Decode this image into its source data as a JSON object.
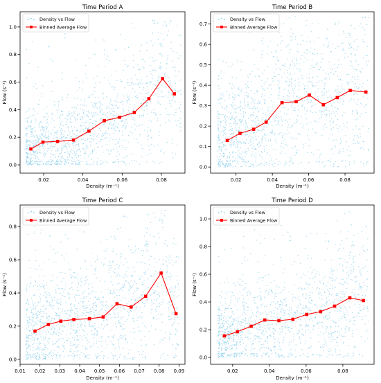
{
  "chart_data": [
    {
      "type": "scatter",
      "title": "Time Period A",
      "xlabel": "Density (m⁻¹)",
      "ylabel": "Flow (s⁻¹)",
      "xlim": [
        0.008,
        0.092
      ],
      "ylim": [
        -0.06,
        1.11
      ],
      "xticks": [
        0.02,
        0.04,
        0.06,
        0.08
      ],
      "xtick_labels": [
        "0.02",
        "0.04",
        "0.06",
        "0.08"
      ],
      "yticks": [
        0.0,
        0.2,
        0.4,
        0.6,
        0.8,
        1.0
      ],
      "ytick_labels": [
        "0.0",
        "0.2",
        "0.4",
        "0.6",
        "0.8",
        "1.0"
      ],
      "legend": {
        "position": "top-left",
        "entries": [
          "Density vs Flow",
          "Binned Average Flow"
        ]
      },
      "series": [
        {
          "name": "Density vs Flow",
          "kind": "scatter",
          "color": "#87ceeb",
          "density_range": [
            0.011,
            0.09
          ],
          "flow_range": [
            0.0,
            1.05
          ]
        },
        {
          "name": "Binned Average Flow",
          "kind": "line",
          "color": "#ff0000",
          "x": [
            0.0135,
            0.0196,
            0.0271,
            0.0352,
            0.0431,
            0.0509,
            0.0587,
            0.0662,
            0.0736,
            0.0806,
            0.0866
          ],
          "y": [
            0.115,
            0.165,
            0.17,
            0.18,
            0.245,
            0.32,
            0.345,
            0.38,
            0.48,
            0.625,
            0.515
          ]
        }
      ]
    },
    {
      "type": "scatter",
      "title": "Time Period B",
      "xlabel": "Density (m⁻¹)",
      "ylabel": "Flow (s⁻¹)",
      "xlim": [
        0.006,
        0.096
      ],
      "ylim": [
        -0.03,
        0.76
      ],
      "xticks": [
        0.02,
        0.04,
        0.06,
        0.08
      ],
      "xtick_labels": [
        "0.02",
        "0.04",
        "0.06",
        "0.08"
      ],
      "yticks": [
        0.0,
        0.1,
        0.2,
        0.3,
        0.4,
        0.5,
        0.6,
        0.7
      ],
      "ytick_labels": [
        "0.0",
        "0.1",
        "0.2",
        "0.3",
        "0.4",
        "0.5",
        "0.6",
        "0.7"
      ],
      "legend": {
        "position": "top-left",
        "entries": [
          "Density vs Flow",
          "Binned Average Flow"
        ]
      },
      "series": [
        {
          "name": "Density vs Flow",
          "kind": "scatter",
          "color": "#87ceeb",
          "density_range": [
            0.01,
            0.093
          ],
          "flow_range": [
            0.0,
            0.74
          ]
        },
        {
          "name": "Binned Average Flow",
          "kind": "line",
          "color": "#ff0000",
          "x": [
            0.0152,
            0.0222,
            0.0297,
            0.0366,
            0.0453,
            0.0531,
            0.0604,
            0.0681,
            0.0757,
            0.0829,
            0.0915
          ],
          "y": [
            0.13,
            0.165,
            0.185,
            0.22,
            0.315,
            0.32,
            0.352,
            0.305,
            0.34,
            0.375,
            0.367
          ]
        }
      ]
    },
    {
      "type": "scatter",
      "title": "Time Period C",
      "xlabel": "Density (m⁻¹)",
      "ylabel": "Flow (s⁻¹)",
      "xlim": [
        0.01,
        0.093
      ],
      "ylim": [
        -0.03,
        0.93
      ],
      "xticks": [
        0.01,
        0.02,
        0.03,
        0.04,
        0.05,
        0.06,
        0.07,
        0.08,
        0.09
      ],
      "xtick_labels": [
        "0.01",
        "0.02",
        "0.03",
        "0.04",
        "0.05",
        "0.06",
        "0.07",
        "0.08",
        "0.09"
      ],
      "yticks": [
        0.0,
        0.2,
        0.4,
        0.6,
        0.8
      ],
      "ytick_labels": [
        "0.0",
        "0.2",
        "0.4",
        "0.6",
        "0.8"
      ],
      "legend": {
        "position": "top-left",
        "entries": [
          "Density vs Flow",
          "Binned Average Flow"
        ]
      },
      "series": [
        {
          "name": "Density vs Flow",
          "kind": "scatter",
          "color": "#87ceeb",
          "density_range": [
            0.013,
            0.09
          ],
          "flow_range": [
            0.0,
            0.9
          ]
        },
        {
          "name": "Binned Average Flow",
          "kind": "line",
          "color": "#ff0000",
          "x": [
            0.0175,
            0.0242,
            0.0305,
            0.0371,
            0.0449,
            0.0518,
            0.0588,
            0.0659,
            0.0732,
            0.081,
            0.0885
          ],
          "y": [
            0.17,
            0.21,
            0.23,
            0.24,
            0.245,
            0.255,
            0.335,
            0.315,
            0.38,
            0.52,
            0.275
          ]
        }
      ]
    },
    {
      "type": "scatter",
      "title": "Time Period D",
      "xlabel": "Density (m⁻¹)",
      "ylabel": "Flow (s⁻¹)",
      "xlim": [
        0.008,
        0.097
      ],
      "ylim": [
        -0.05,
        1.1
      ],
      "xticks": [
        0.02,
        0.04,
        0.06,
        0.08
      ],
      "xtick_labels": [
        "0.02",
        "0.04",
        "0.06",
        "0.08"
      ],
      "yticks": [
        0.0,
        0.2,
        0.4,
        0.6,
        0.8,
        1.0
      ],
      "ytick_labels": [
        "0.0",
        "0.2",
        "0.4",
        "0.6",
        "0.8",
        "1.0"
      ],
      "legend": {
        "position": "top-left",
        "entries": [
          "Density vs Flow",
          "Binned Average Flow"
        ]
      },
      "series": [
        {
          "name": "Density vs Flow",
          "kind": "scatter",
          "color": "#87ceeb",
          "density_range": [
            0.012,
            0.094
          ],
          "flow_range": [
            0.0,
            1.05
          ]
        },
        {
          "name": "Binned Average Flow",
          "kind": "line",
          "color": "#ff0000",
          "x": [
            0.0155,
            0.0226,
            0.0301,
            0.0375,
            0.0452,
            0.0528,
            0.0603,
            0.0679,
            0.0755,
            0.0838,
            0.0912
          ],
          "y": [
            0.155,
            0.185,
            0.225,
            0.27,
            0.265,
            0.275,
            0.31,
            0.33,
            0.37,
            0.43,
            0.41
          ]
        }
      ]
    }
  ]
}
